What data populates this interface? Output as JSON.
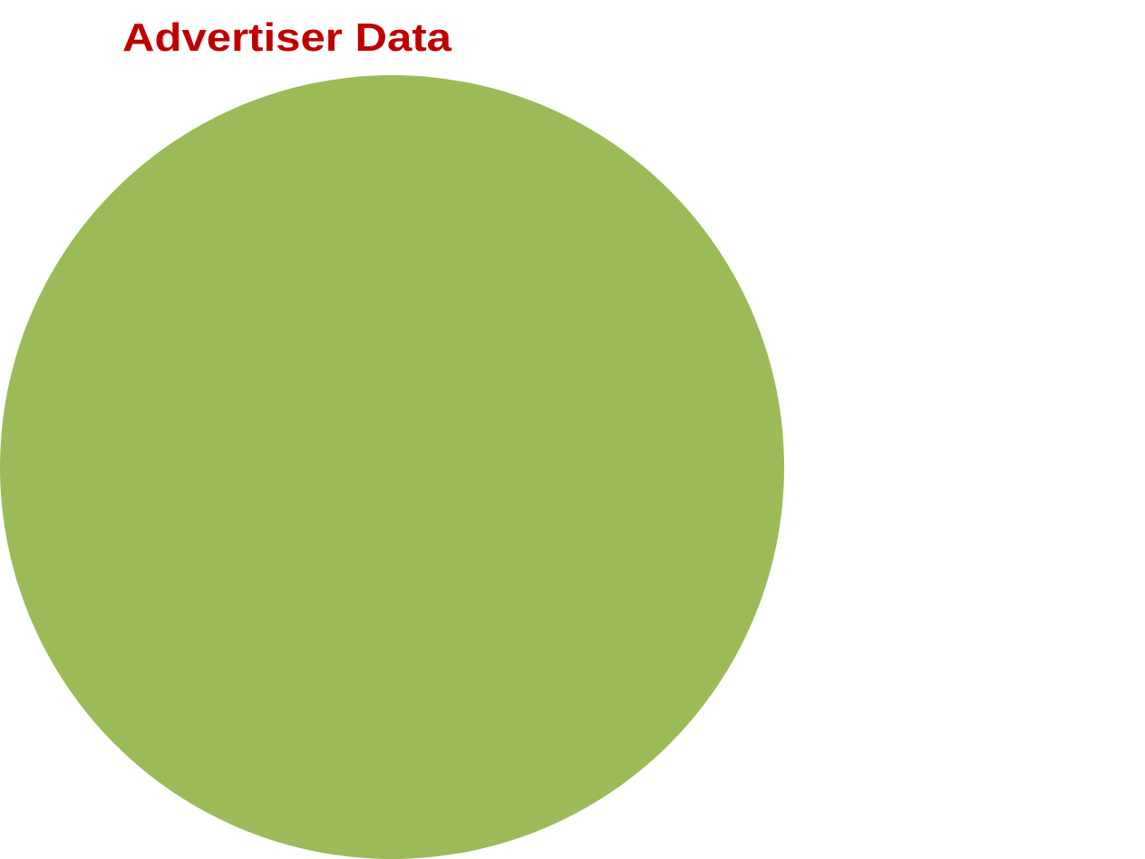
{
  "title": "Advertiser Data",
  "colors": {
    "title": "#C00000",
    "circle": "#9BBB59"
  }
}
